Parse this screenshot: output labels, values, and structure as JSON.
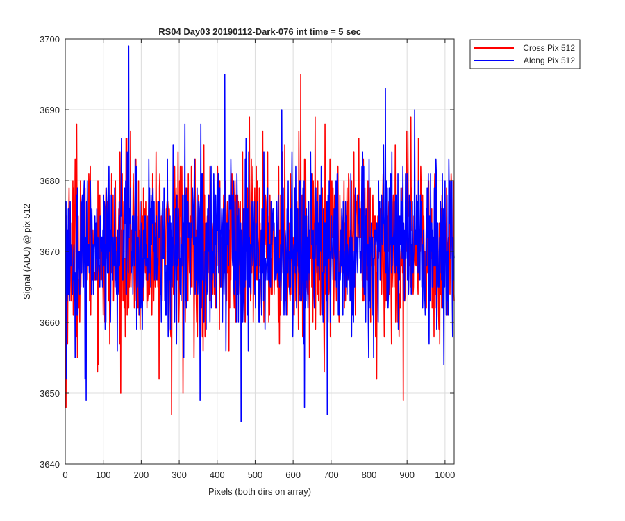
{
  "chart_data": {
    "type": "line",
    "title": "RS04 Day03 20190112-Dark-076 int time = 5 sec",
    "xlabel": "Pixels (both dirs on array)",
    "ylabel": "Signal (ADU) @ pix 512",
    "xlim": [
      0,
      1024
    ],
    "ylim": [
      3640,
      3700
    ],
    "xticks": [
      0,
      100,
      200,
      300,
      400,
      500,
      600,
      700,
      800,
      900,
      1000
    ],
    "yticks": [
      3640,
      3650,
      3660,
      3670,
      3680,
      3690,
      3700
    ],
    "grid": true,
    "legend_position": "outside-top-right",
    "series": [
      {
        "name": "Cross Pix 512",
        "color": "#ff0000",
        "mean": 3670.5,
        "sd": 6.2,
        "peaks": [
          [
            620,
            3695
          ],
          [
            30,
            3688
          ],
          [
            910,
            3689
          ],
          [
            160,
            3686
          ],
          [
            520,
            3687
          ]
        ],
        "troughs": [
          [
            2,
            3648
          ],
          [
            280,
            3647
          ],
          [
            890,
            3649
          ],
          [
            310,
            3650
          ],
          [
            820,
            3652
          ]
        ]
      },
      {
        "name": "Along Pix 512",
        "color": "#0000ff",
        "mean": 3670.5,
        "sd": 6.0,
        "peaks": [
          [
            167,
            3699
          ],
          [
            420,
            3695
          ],
          [
            843,
            3693
          ],
          [
            570,
            3690
          ],
          [
            920,
            3690
          ]
        ],
        "troughs": [
          [
            463,
            3646
          ],
          [
            690,
            3647
          ],
          [
            55,
            3649
          ],
          [
            630,
            3648
          ],
          [
            355,
            3649
          ]
        ]
      }
    ]
  }
}
